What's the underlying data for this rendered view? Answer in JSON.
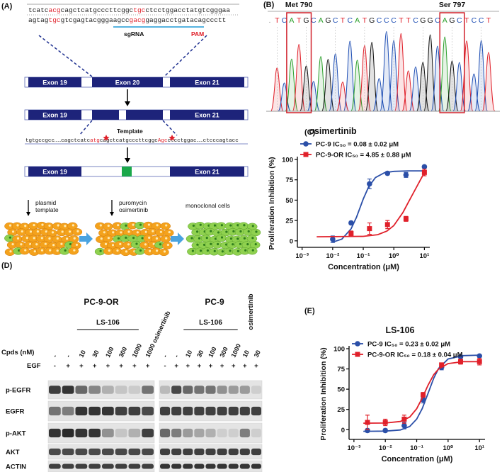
{
  "panels": {
    "a": "(A)",
    "b": "(B)",
    "c": "(C)",
    "d": "(D)",
    "e": "(E)"
  },
  "gene_editing": {
    "seq_top": [
      "tcatc",
      "acg",
      "cagctcatgcccttcggc",
      "tgc",
      "ctcctggacctatgtcgggaa"
    ],
    "seq_bottom": [
      "agtag",
      "tgc",
      "gtcgagtacgggaagcc",
      "gacg",
      "gaggacctgatacagccctt"
    ],
    "sgrna": "sgRNA",
    "pam": "PAM",
    "exons": [
      "Exon 19",
      "Exon 20",
      "Exon 21"
    ],
    "template": "Template",
    "template_seq": [
      "tgtgccgcc……cagctcatc",
      "atg",
      "cagctcatgcccttcggc",
      "Agc",
      "ctcctggac……ctcccagtacc"
    ],
    "steps": [
      [
        "plasmid",
        "template"
      ],
      [
        "puromycin",
        "osimertinib"
      ],
      [
        "monoclonal cells"
      ]
    ]
  },
  "sequencing": {
    "labels": [
      "Met 790",
      "Ser 797"
    ],
    "bases": [
      ".",
      "T",
      "C",
      "A",
      "T",
      "G",
      "C",
      "A",
      "G",
      "C",
      "T",
      "C",
      "A",
      "T",
      "G",
      "C",
      "C",
      "C",
      "T",
      "T",
      "C",
      "G",
      "G",
      "C",
      "A",
      "G",
      "C",
      "T",
      "C",
      "C",
      "T"
    ],
    "base_colors": {
      "A": "#2ca02c",
      "C": "#1f4fb4",
      "G": "#111111",
      "T": "#e0202a",
      ".": "#888888"
    }
  },
  "western_blot": {
    "groups": [
      {
        "title": "PC-9-OR",
        "drug": "LS-106",
        "doses": [
          "-",
          "-",
          "10",
          "30",
          "100",
          "300",
          "1000",
          "1000 osimertinib"
        ],
        "egf": [
          "-",
          "+",
          "+",
          "+",
          "+",
          "+",
          "+",
          "+"
        ]
      },
      {
        "title": "PC-9",
        "drug": "LS-106",
        "extra": "osimertinib",
        "doses": [
          "-",
          "-",
          "10",
          "30",
          "100",
          "300",
          "1000",
          "10",
          "30"
        ],
        "egf": [
          "-",
          "+",
          "+",
          "+",
          "+",
          "+",
          "+",
          "+",
          "+"
        ]
      }
    ],
    "dose_label": "Cpds (nM)",
    "egf_label": "EGF",
    "rows": [
      "p-EGFR",
      "EGFR",
      "p-AKT",
      "AKT",
      "ACTIN"
    ]
  },
  "chart_data": [
    {
      "type": "line",
      "title": "osimertinib",
      "x_label": "Concentration (μM)",
      "y_label": "Proliferation Inhibition (%)",
      "log_x": true,
      "xlim": [
        0.0007,
        15
      ],
      "ylim": [
        -8,
        100
      ],
      "xticks": [
        {
          "value": 0.001,
          "label": "10⁻³"
        },
        {
          "value": 0.01,
          "label": "10⁻²"
        },
        {
          "value": 0.1,
          "label": "10⁻¹"
        },
        {
          "value": 1,
          "label": "10⁰"
        },
        {
          "value": 10,
          "label": "10¹"
        }
      ],
      "yticks": [
        0,
        25,
        50,
        75,
        100
      ],
      "series": [
        {
          "name": "PC-9 IC₅₀ = 0.08 ± 0.02 μM",
          "color": "#2b4fa8",
          "marker": "circle",
          "x": [
            0.01,
            0.04,
            0.16,
            0.62,
            2.5,
            10
          ],
          "values": [
            2,
            22,
            70,
            83,
            81,
            91
          ],
          "errors": [
            4,
            2,
            6,
            2,
            3,
            1
          ],
          "fit_x": [
            0.01,
            0.02,
            0.04,
            0.06,
            0.1,
            0.15,
            0.25,
            0.5,
            1,
            3,
            10
          ],
          "fit_values": [
            -1.6,
            2.2,
            14.8,
            29,
            51.3,
            66.3,
            77.7,
            83.8,
            85.4,
            86,
            86
          ]
        },
        {
          "name": "PC-9-OR IC₅₀ = 4.85 ± 0.88 μM",
          "color": "#e0202a",
          "marker": "square",
          "x": [
            0.04,
            0.16,
            0.62,
            2.5,
            10
          ],
          "values": [
            9,
            15,
            20,
            27,
            84
          ],
          "errors": [
            3,
            7,
            5,
            3,
            4
          ],
          "fit_x": [
            0.003,
            0.1,
            0.3,
            0.6,
            1,
            2,
            3,
            5,
            10
          ],
          "fit_values": [
            5,
            5.5,
            7.6,
            12,
            18.7,
            35,
            47.5,
            63,
            84
          ]
        }
      ]
    },
    {
      "type": "line",
      "title": "LS-106",
      "x_label": "Concentration (μM)",
      "y_label": "Proliferation Inhibition (%)",
      "log_x": true,
      "xlim": [
        0.0007,
        15
      ],
      "ylim": [
        -12,
        100
      ],
      "xticks": [
        {
          "value": 0.001,
          "label": "10⁻³"
        },
        {
          "value": 0.01,
          "label": "10⁻²"
        },
        {
          "value": 0.1,
          "label": "10⁻¹"
        },
        {
          "value": 1,
          "label": "10⁰"
        },
        {
          "value": 10,
          "label": "10¹"
        }
      ],
      "yticks": [
        0,
        25,
        50,
        75,
        100
      ],
      "series": [
        {
          "name": "PC-9 IC₅₀ = 0.23 ± 0.02 μM",
          "color": "#2b4fa8",
          "marker": "circle",
          "x": [
            0.0027,
            0.01,
            0.04,
            0.16,
            0.62,
            2.5,
            10
          ],
          "values": [
            -1,
            -1,
            5,
            37,
            77,
            90,
            91
          ],
          "errors": [
            2,
            2,
            4,
            4,
            3,
            1,
            1
          ],
          "fit_x": [
            0.002,
            0.01,
            0.03,
            0.06,
            0.1,
            0.15,
            0.23,
            0.35,
            0.5,
            1,
            3,
            10
          ],
          "fit_values": [
            -2,
            -1.8,
            -0.4,
            4,
            13,
            26,
            45,
            63.6,
            75.7,
            87.3,
            91.4,
            92
          ]
        },
        {
          "name": "PC-9-OR IC₅₀ = 0.18 ± 0.04 μM",
          "color": "#e0202a",
          "marker": "square",
          "x": [
            0.0027,
            0.01,
            0.04,
            0.16,
            0.62,
            2.5,
            10
          ],
          "values": [
            9,
            9,
            13,
            43,
            80,
            84,
            84
          ],
          "errors": [
            9,
            4,
            5,
            3,
            2,
            3,
            4
          ],
          "fit_x": [
            0.002,
            0.01,
            0.03,
            0.06,
            0.1,
            0.15,
            0.23,
            0.35,
            0.5,
            1,
            3,
            10
          ],
          "fit_values": [
            8,
            8.2,
            10.1,
            15.6,
            25.9,
            39,
            55,
            68,
            75,
            81.6,
            84,
            84
          ]
        }
      ]
    }
  ]
}
